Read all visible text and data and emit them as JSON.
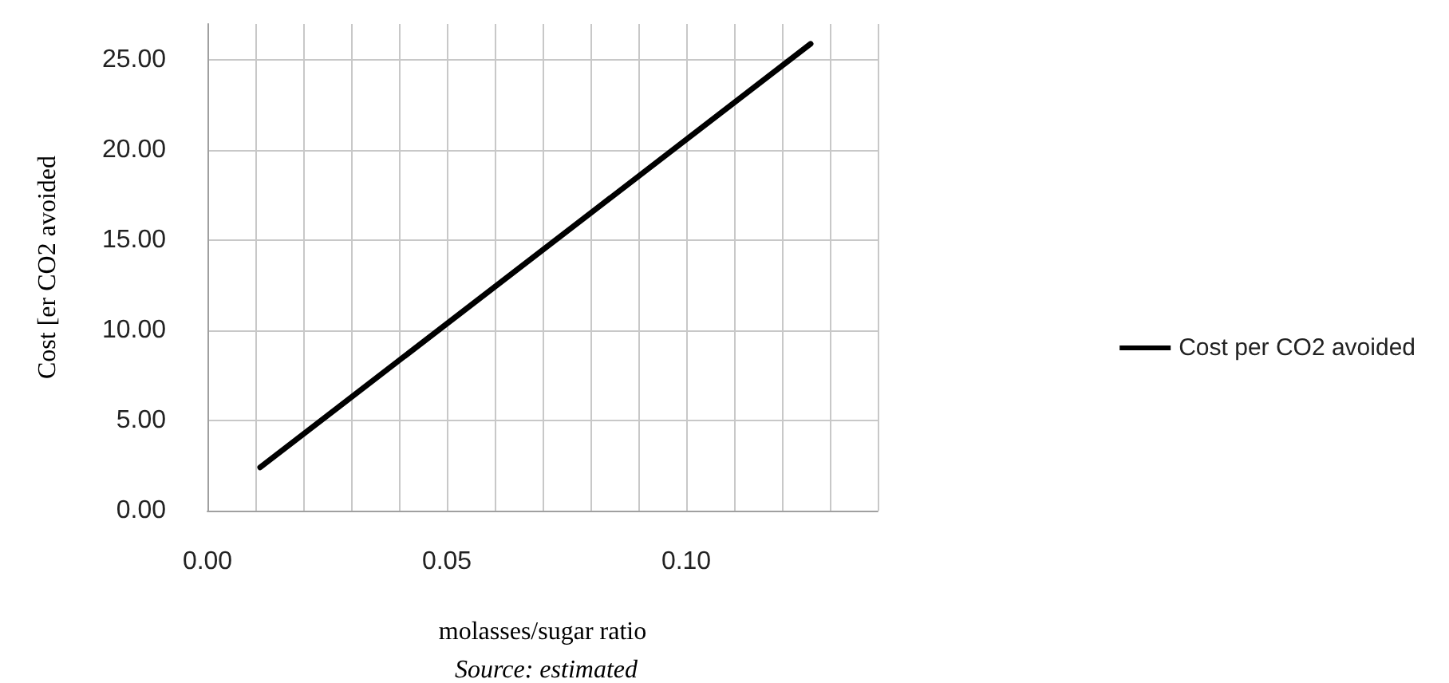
{
  "chart_data": {
    "type": "line",
    "xlabel": "molasses/sugar ratio",
    "ylabel": "Cost [er CO2 avoided",
    "annotations": [
      "Source: estimated"
    ],
    "series": [
      {
        "name": "Cost per CO2 avoided",
        "color": "#000000",
        "x": [
          0.011,
          0.126
        ],
        "values": [
          2.4,
          25.9
        ]
      }
    ],
    "xlim": [
      0,
      0.14
    ],
    "xticks": [
      {
        "value": 0,
        "label": "0.00"
      },
      {
        "value": 0.01,
        "label": null
      },
      {
        "value": 0.02,
        "label": null
      },
      {
        "value": 0.03,
        "label": null
      },
      {
        "value": 0.04,
        "label": null
      },
      {
        "value": 0.05,
        "label": "0.05"
      },
      {
        "value": 0.06,
        "label": null
      },
      {
        "value": 0.07,
        "label": null
      },
      {
        "value": 0.08,
        "label": null
      },
      {
        "value": 0.09,
        "label": null
      },
      {
        "value": 0.1,
        "label": "0.10"
      },
      {
        "value": 0.11,
        "label": null
      },
      {
        "value": 0.12,
        "label": null
      },
      {
        "value": 0.13,
        "label": null
      },
      {
        "value": 0.14,
        "label": null
      }
    ],
    "ylim": [
      0,
      27
    ],
    "yticks": [
      {
        "value": 0,
        "label": "0.00"
      },
      {
        "value": 5,
        "label": "5.00"
      },
      {
        "value": 10,
        "label": "10.00"
      },
      {
        "value": 15,
        "label": "15.00"
      },
      {
        "value": 20,
        "label": "20.00"
      },
      {
        "value": 25,
        "label": "25.00"
      }
    ],
    "grid": true,
    "legend": "right",
    "marker": "none",
    "line_style": "solid"
  }
}
